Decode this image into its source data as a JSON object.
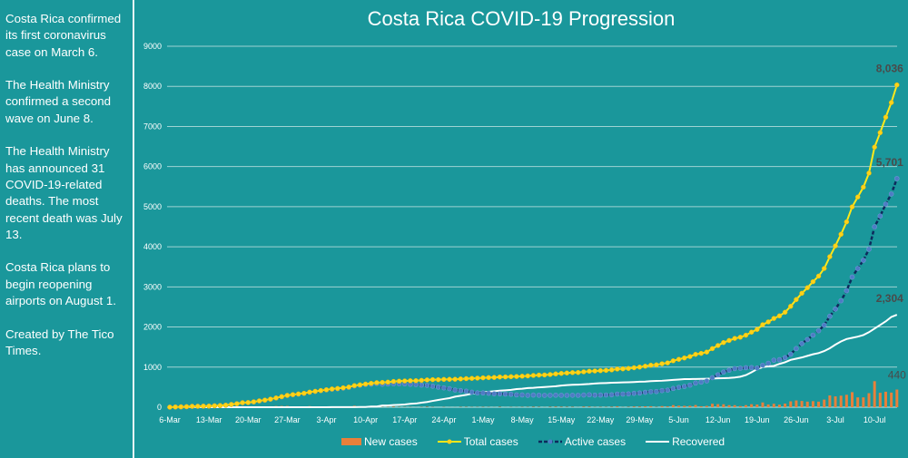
{
  "sidebar": {
    "paragraphs": [
      "Costa Rica confirmed its first coronavirus case on March 6.",
      "The Health Ministry confirmed a second wave on June 8.",
      "The Health Ministry has announced 31 COVID-19-related deaths. The most recent death was July 13.",
      "Costa Rica plans to begin reopening airports on August 1.",
      "Created by The Tico Times."
    ]
  },
  "chart_data": {
    "type": "line",
    "title": "Costa Rica COVID-19 Progression",
    "xlabel": "",
    "ylabel": "",
    "ylim": [
      0,
      9000
    ],
    "yticks": [
      "0",
      "1000",
      "2000",
      "3000",
      "4000",
      "5000",
      "6000",
      "7000",
      "8000",
      "9000"
    ],
    "x_range": [
      "6-Mar",
      "14-Jul"
    ],
    "xtick_labels": [
      "6-Mar",
      "13-Mar",
      "20-Mar",
      "27-Mar",
      "3-Apr",
      "10-Apr",
      "17-Apr",
      "24-Apr",
      "1-May",
      "8-May",
      "15-May",
      "22-May",
      "29-May",
      "5-Jun",
      "12-Jun",
      "19-Jun",
      "26-Jun",
      "3-Jul",
      "10-Jul"
    ],
    "grid": true,
    "legend_position": "bottom",
    "colors": {
      "new": "#e8803a",
      "total": "#ffe81a",
      "active_line": "#0d2a5c",
      "active_marker": "#4d7cc4",
      "recovered": "#ffffff",
      "label": "#4a4a4a",
      "background": "#1a979b"
    },
    "series": [
      {
        "name": "New cases",
        "kind": "bar",
        "values": [
          1,
          4,
          4,
          4,
          9,
          1,
          3,
          1,
          8,
          6,
          9,
          19,
          18,
          26,
          4,
          17,
          24,
          19,
          24,
          30,
          32,
          32,
          19,
          16,
          17,
          28,
          21,
          20,
          19,
          19,
          13,
          16,
          19,
          37,
          19,
          19,
          18,
          17,
          6,
          8,
          16,
          7,
          6,
          5,
          2,
          7,
          12,
          6,
          0,
          6,
          2,
          2,
          8,
          8,
          6,
          6,
          8,
          6,
          3,
          11,
          2,
          6,
          4,
          8,
          7,
          12,
          9,
          3,
          11,
          15,
          13,
          10,
          10,
          3,
          16,
          15,
          6,
          8,
          7,
          12,
          21,
          5,
          10,
          18,
          16,
          22,
          25,
          9,
          28,
          21,
          52,
          37,
          34,
          35,
          55,
          24,
          33,
          86,
          77,
          74,
          52,
          51,
          29,
          52,
          75,
          68,
          119,
          69,
          86,
          64,
          91,
          147,
          169,
          156,
          139,
          151,
          139,
          190,
          294,
          270,
          288,
          310,
          375,
          245,
          245,
          350,
          649,
          360,
          386,
          365,
          440
        ]
      },
      {
        "name": "Total cases",
        "kind": "line",
        "values": [
          1,
          5,
          9,
          13,
          22,
          23,
          26,
          27,
          35,
          41,
          50,
          69,
          87,
          113,
          117,
          134,
          158,
          177,
          201,
          231,
          263,
          295,
          314,
          330,
          347,
          375,
          396,
          416,
          435,
          454,
          467,
          483,
          502,
          539,
          558,
          577,
          595,
          612,
          618,
          626,
          642,
          649,
          655,
          660,
          662,
          669,
          681,
          687,
          687,
          693,
          695,
          697,
          705,
          713,
          719,
          725,
          733,
          739,
          742,
          753,
          755,
          761,
          765,
          773,
          780,
          792,
          801,
          804,
          815,
          830,
          843,
          853,
          863,
          866,
          882,
          897,
          903,
          911,
          918,
          930,
          951,
          956,
          966,
          984,
          1000,
          1022,
          1047,
          1056,
          1084,
          1105,
          1157,
          1194,
          1228,
          1263,
          1318,
          1342,
          1375,
          1461,
          1538,
          1612,
          1664,
          1715,
          1744,
          1796,
          1871,
          1939,
          2058,
          2127,
          2213,
          2277,
          2368,
          2515,
          2684,
          2840,
          2979,
          3130,
          3269,
          3459,
          3753,
          4023,
          4311,
          4621,
          4996,
          5241,
          5486,
          5836,
          6485,
          6845,
          7231,
          7596,
          8036
        ]
      },
      {
        "name": "Active cases",
        "kind": "line",
        "values": [
          1,
          5,
          9,
          13,
          22,
          23,
          26,
          27,
          35,
          41,
          50,
          69,
          87,
          112,
          116,
          133,
          157,
          175,
          199,
          229,
          261,
          293,
          312,
          328,
          345,
          373,
          394,
          414,
          433,
          448,
          460,
          476,
          495,
          532,
          549,
          568,
          574,
          591,
          572,
          580,
          585,
          585,
          583,
          571,
          566,
          551,
          544,
          524,
          501,
          482,
          462,
          429,
          414,
          400,
          374,
          357,
          357,
          348,
          336,
          335,
          328,
          323,
          308,
          306,
          296,
          303,
          299,
          295,
          296,
          300,
          296,
          297,
          298,
          297,
          304,
          311,
          301,
          303,
          305,
          310,
          328,
          328,
          333,
          346,
          354,
          372,
          387,
          391,
          414,
          425,
          467,
          494,
          518,
          551,
          603,
          625,
          655,
          736,
          808,
          877,
          924,
          963,
          972,
          984,
          989,
          977,
          1046,
          1095,
          1171,
          1185,
          1236,
          1323,
          1462,
          1588,
          1687,
          1798,
          1907,
          2045,
          2268,
          2447,
          2654,
          2903,
          3246,
          3459,
          3662,
          3940,
          4498,
          4767,
          5062,
          5316,
          5701
        ]
      },
      {
        "name": "Recovered",
        "kind": "line",
        "values": [
          0,
          0,
          0,
          0,
          0,
          0,
          0,
          0,
          0,
          0,
          0,
          0,
          0,
          0,
          0,
          0,
          0,
          0,
          0,
          0,
          0,
          0,
          0,
          0,
          0,
          0,
          0,
          0,
          0,
          4,
          4,
          4,
          4,
          4,
          6,
          6,
          17,
          17,
          42,
          42,
          53,
          60,
          68,
          85,
          92,
          112,
          131,
          157,
          180,
          205,
          227,
          262,
          285,
          307,
          339,
          362,
          370,
          385,
          400,
          412,
          421,
          432,
          451,
          461,
          478,
          483,
          496,
          503,
          513,
          524,
          541,
          550,
          559,
          563,
          572,
          580,
          592,
          598,
          603,
          610,
          613,
          618,
          623,
          628,
          636,
          640,
          650,
          655,
          660,
          670,
          680,
          690,
          700,
          702,
          705,
          707,
          710,
          715,
          720,
          725,
          730,
          740,
          760,
          800,
          870,
          950,
          1000,
          1020,
          1030,
          1080,
          1120,
          1180,
          1210,
          1240,
          1280,
          1320,
          1350,
          1400,
          1470,
          1560,
          1640,
          1700,
          1730,
          1760,
          1800,
          1870,
          1960,
          2050,
          2140,
          2250,
          2304
        ]
      }
    ],
    "data_labels": {
      "total": "8,036",
      "active": "5,701",
      "recovered": "2,304",
      "new": "440"
    }
  }
}
